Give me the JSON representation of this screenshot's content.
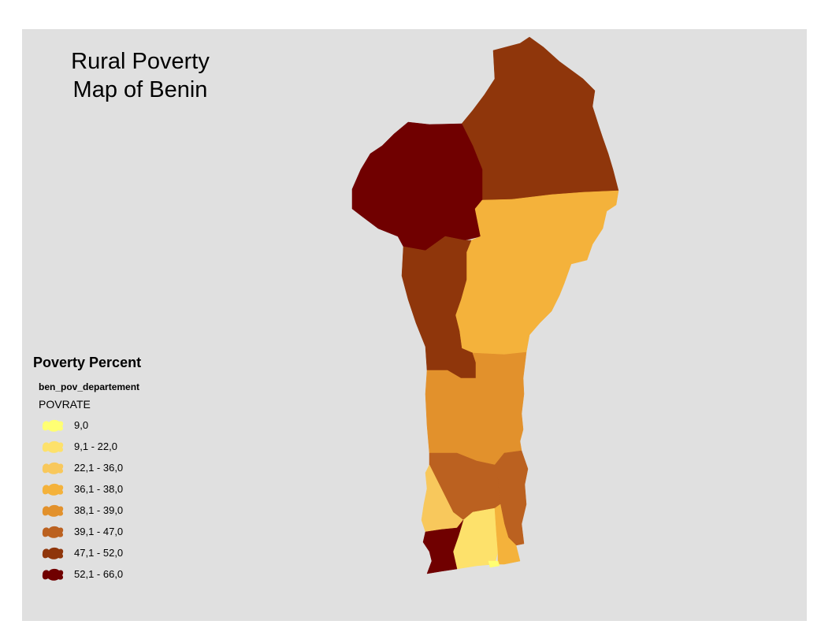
{
  "title": {
    "line1": "Rural Poverty",
    "line2": "Map of Benin"
  },
  "legend": {
    "title": "Poverty Percent",
    "layer": "ben_pov_departement",
    "field": "POVRATE",
    "classes": [
      {
        "label": "9,0",
        "color": "#ffff73"
      },
      {
        "label": "9,1 - 22,0",
        "color": "#fde16b"
      },
      {
        "label": "22,1 - 36,0",
        "color": "#f8c85c"
      },
      {
        "label": "36,1 - 38,0",
        "color": "#f4b23b"
      },
      {
        "label": "38,1 - 39,0",
        "color": "#e2912c"
      },
      {
        "label": "39,1 - 47,0",
        "color": "#bb6120"
      },
      {
        "label": "47,1 - 52,0",
        "color": "#8f360b"
      },
      {
        "label": "52,1 - 66,0",
        "color": "#700000"
      }
    ]
  },
  "map": {
    "background": "#e0e0e0",
    "regions": [
      {
        "id": "north-east",
        "class_index": 6
      },
      {
        "id": "north-west",
        "class_index": 7
      },
      {
        "id": "central-east",
        "class_index": 3
      },
      {
        "id": "central-west",
        "class_index": 6
      },
      {
        "id": "central",
        "class_index": 4
      },
      {
        "id": "south-central",
        "class_index": 5
      },
      {
        "id": "south-east",
        "class_index": 5
      },
      {
        "id": "south-west-mono",
        "class_index": 2
      },
      {
        "id": "south-atlantique",
        "class_index": 1
      },
      {
        "id": "south-ouidah",
        "class_index": 7
      },
      {
        "id": "south-porto-novo",
        "class_index": 3
      },
      {
        "id": "south-cotonou",
        "class_index": 0
      }
    ]
  }
}
